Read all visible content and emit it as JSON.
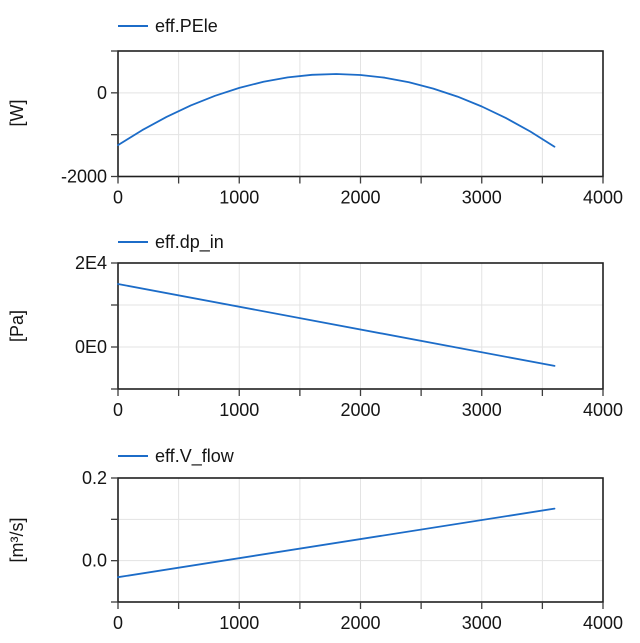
{
  "window": {
    "background": "#ffffff"
  },
  "style": {
    "curve_color": "#1c6cc8",
    "axis_color": "#1f1f1f",
    "tick_color": "#3c3c3c",
    "grid_color": "#e3e3e3",
    "text_color": "#151515"
  },
  "chart_data": [
    {
      "type": "line",
      "legend": "eff.PEle",
      "ylabel": "[W]",
      "xlim": [
        0,
        4000
      ],
      "ylim": [
        -2000,
        1000
      ],
      "grid": "on",
      "legend_position": "top-left",
      "x_labeled_ticks": [
        0,
        1000,
        2000,
        3000,
        4000
      ],
      "x_minor_tick_step": 500,
      "x_grid_step": 500,
      "y_labeled_ticks": [
        {
          "value": 0,
          "label": "0"
        },
        {
          "value": -2000,
          "label": "-2000"
        }
      ],
      "y_minor_ticks": [
        1000,
        -1000
      ],
      "y_grid_lines": [
        0,
        -1000
      ],
      "series": [
        {
          "name": "eff.PEle",
          "color": "#1c6cc8",
          "points": [
            [
              0,
              -1250
            ],
            [
              200,
              -891
            ],
            [
              400,
              -575
            ],
            [
              600,
              -301
            ],
            [
              800,
              -70
            ],
            [
              1000,
              119
            ],
            [
              1200,
              265
            ],
            [
              1400,
              369
            ],
            [
              1600,
              431
            ],
            [
              1800,
              450
            ],
            [
              2000,
              427
            ],
            [
              2200,
              361
            ],
            [
              2400,
              253
            ],
            [
              2600,
              102
            ],
            [
              2800,
              -91
            ],
            [
              3000,
              -327
            ],
            [
              3200,
              -605
            ],
            [
              3400,
              -925
            ],
            [
              3600,
              -1288
            ]
          ]
        }
      ]
    },
    {
      "type": "line",
      "legend": "eff.dp_in",
      "ylabel": "[Pa]",
      "xlim": [
        0,
        4000
      ],
      "ylim": [
        -10000,
        20000
      ],
      "grid": "on",
      "legend_position": "top-left",
      "x_labeled_ticks": [
        0,
        1000,
        2000,
        3000,
        4000
      ],
      "x_minor_tick_step": 500,
      "x_grid_step": 500,
      "y_labeled_ticks": [
        {
          "value": 20000,
          "label": "2E4"
        },
        {
          "value": 0,
          "label": "0E0"
        }
      ],
      "y_minor_ticks": [
        10000,
        -10000
      ],
      "y_grid_lines": [
        10000,
        0
      ],
      "series": [
        {
          "name": "eff.dp_in",
          "color": "#1c6cc8",
          "points": [
            [
              0,
              15000
            ],
            [
              3600,
              -4500
            ]
          ]
        }
      ]
    },
    {
      "type": "line",
      "legend": "eff.V_flow",
      "ylabel": "[m³/s]",
      "xlim": [
        0,
        4000
      ],
      "ylim": [
        -0.1,
        0.2
      ],
      "grid": "on",
      "legend_position": "top-left",
      "x_labeled_ticks": [
        0,
        1000,
        2000,
        3000,
        4000
      ],
      "x_minor_tick_step": 500,
      "x_grid_step": 500,
      "y_labeled_ticks": [
        {
          "value": 0.2,
          "label": "0.2"
        },
        {
          "value": 0.0,
          "label": "0.0"
        }
      ],
      "y_minor_ticks": [
        0.1,
        -0.1
      ],
      "y_grid_lines": [
        0.1,
        0.0
      ],
      "series": [
        {
          "name": "eff.V_flow",
          "color": "#1c6cc8",
          "points": [
            [
              0,
              -0.04
            ],
            [
              3600,
              0.126
            ]
          ]
        }
      ]
    }
  ]
}
